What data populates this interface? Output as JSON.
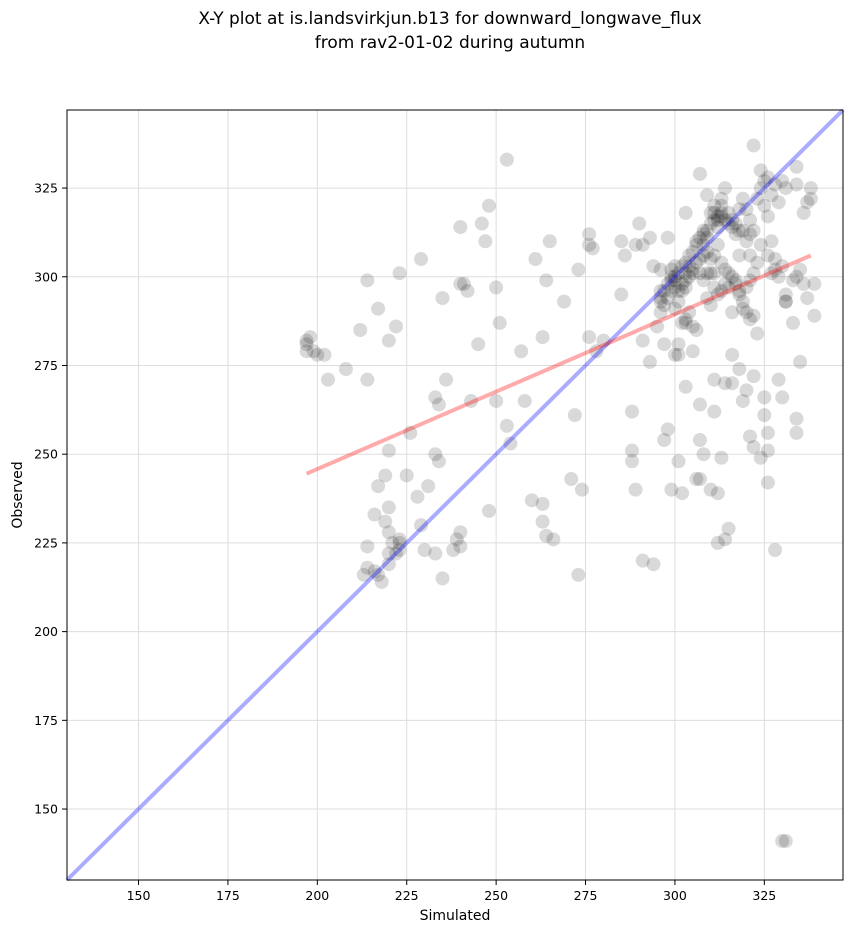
{
  "chart_data": {
    "type": "scatter",
    "title": [
      "X-Y plot at is.landsvirkjun.b13 for downward_longwave_flux",
      "from rav2-01-02 during autumn"
    ],
    "xlabel": "Simulated",
    "ylabel": "Observed",
    "xlim": [
      130,
      347
    ],
    "ylim": [
      130,
      347
    ],
    "xticks": [
      150,
      175,
      200,
      225,
      250,
      275,
      300,
      325
    ],
    "yticks": [
      150,
      175,
      200,
      225,
      250,
      275,
      300,
      325
    ],
    "grid": true,
    "colors": {
      "points": "#000000",
      "identity_line": "#0000ff",
      "regression_line": "#ff0000",
      "grid": "#dddddd"
    },
    "identity_line": {
      "from": [
        130,
        130
      ],
      "to": [
        347,
        347
      ]
    },
    "regression_line": {
      "from": [
        197,
        244.5
      ],
      "to": [
        338,
        306
      ]
    },
    "points": [
      [
        197,
        281
      ],
      [
        197,
        279
      ],
      [
        198,
        283
      ],
      [
        197,
        282
      ],
      [
        199,
        279
      ],
      [
        200,
        278
      ],
      [
        202,
        278
      ],
      [
        203,
        271
      ],
      [
        208,
        274
      ],
      [
        212,
        285
      ],
      [
        214,
        271
      ],
      [
        214,
        299
      ],
      [
        217,
        291
      ],
      [
        220,
        282
      ],
      [
        222,
        286
      ],
      [
        223,
        301
      ],
      [
        229,
        305
      ],
      [
        235,
        294
      ],
      [
        240,
        314
      ],
      [
        240,
        298
      ],
      [
        241,
        298
      ],
      [
        242,
        296
      ],
      [
        245,
        281
      ],
      [
        246,
        315
      ],
      [
        247,
        310
      ],
      [
        248,
        320
      ],
      [
        250,
        297
      ],
      [
        251,
        287
      ],
      [
        253,
        333
      ],
      [
        257,
        279
      ],
      [
        261,
        305
      ],
      [
        263,
        283
      ],
      [
        264,
        299
      ],
      [
        265,
        310
      ],
      [
        269,
        293
      ],
      [
        273,
        302
      ],
      [
        276,
        312
      ],
      [
        277,
        308
      ],
      [
        276,
        283
      ],
      [
        278,
        279
      ],
      [
        280,
        282
      ],
      [
        285,
        310
      ],
      [
        286,
        306
      ],
      [
        289,
        309
      ],
      [
        290,
        315
      ],
      [
        291,
        309
      ],
      [
        293,
        311
      ],
      [
        294,
        303
      ],
      [
        296,
        302
      ],
      [
        296,
        294
      ],
      [
        298,
        311
      ],
      [
        299,
        302
      ],
      [
        300,
        303
      ],
      [
        303,
        318
      ],
      [
        216,
        233
      ],
      [
        217,
        241
      ],
      [
        219,
        244
      ],
      [
        220,
        251
      ],
      [
        219,
        231
      ],
      [
        220,
        235
      ],
      [
        221,
        225
      ],
      [
        220,
        222
      ],
      [
        222,
        222
      ],
      [
        223,
        226
      ],
      [
        223,
        223
      ],
      [
        220,
        219
      ],
      [
        217,
        216
      ],
      [
        213,
        216
      ],
      [
        214,
        218
      ],
      [
        216,
        217
      ],
      [
        214,
        224
      ],
      [
        220,
        228
      ],
      [
        218,
        214
      ],
      [
        223,
        225
      ],
      [
        225,
        244
      ],
      [
        226,
        256
      ],
      [
        228,
        238
      ],
      [
        229,
        230
      ],
      [
        230,
        223
      ],
      [
        231,
        241
      ],
      [
        233,
        222
      ],
      [
        233,
        250
      ],
      [
        234,
        248
      ],
      [
        233,
        266
      ],
      [
        234,
        264
      ],
      [
        235,
        215
      ],
      [
        236,
        271
      ],
      [
        238,
        223
      ],
      [
        239,
        226
      ],
      [
        240,
        224
      ],
      [
        240,
        228
      ],
      [
        243,
        265
      ],
      [
        248,
        234
      ],
      [
        250,
        265
      ],
      [
        253,
        258
      ],
      [
        254,
        253
      ],
      [
        258,
        265
      ],
      [
        260,
        237
      ],
      [
        263,
        236
      ],
      [
        263,
        231
      ],
      [
        264,
        227
      ],
      [
        266,
        226
      ],
      [
        271,
        243
      ],
      [
        272,
        261
      ],
      [
        273,
        216
      ],
      [
        274,
        240
      ],
      [
        276,
        309
      ],
      [
        285,
        295
      ],
      [
        288,
        262
      ],
      [
        288,
        251
      ],
      [
        288,
        248
      ],
      [
        289,
        240
      ],
      [
        291,
        220
      ],
      [
        291,
        282
      ],
      [
        293,
        276
      ],
      [
        294,
        219
      ],
      [
        295,
        286
      ],
      [
        296,
        290
      ],
      [
        296,
        296
      ],
      [
        297,
        281
      ],
      [
        297,
        254
      ],
      [
        298,
        257
      ],
      [
        299,
        240
      ],
      [
        300,
        300
      ],
      [
        301,
        278
      ],
      [
        301,
        248
      ],
      [
        302,
        239
      ],
      [
        303,
        269
      ],
      [
        303,
        287
      ],
      [
        305,
        279
      ],
      [
        306,
        243
      ],
      [
        307,
        243
      ],
      [
        307,
        264
      ],
      [
        307,
        254
      ],
      [
        308,
        250
      ],
      [
        310,
        240
      ],
      [
        311,
        271
      ],
      [
        311,
        262
      ],
      [
        312,
        239
      ],
      [
        313,
        249
      ],
      [
        314,
        270
      ],
      [
        315,
        229
      ],
      [
        312,
        225
      ],
      [
        314,
        226
      ],
      [
        316,
        270
      ],
      [
        316,
        278
      ],
      [
        318,
        274
      ],
      [
        319,
        265
      ],
      [
        320,
        268
      ],
      [
        321,
        255
      ],
      [
        322,
        252
      ],
      [
        322,
        272
      ],
      [
        323,
        284
      ],
      [
        324,
        249
      ],
      [
        325,
        266
      ],
      [
        325,
        261
      ],
      [
        326,
        242
      ],
      [
        326,
        256
      ],
      [
        326,
        251
      ],
      [
        327,
        301
      ],
      [
        328,
        223
      ],
      [
        329,
        271
      ],
      [
        330,
        266
      ],
      [
        331,
        295
      ],
      [
        331,
        293
      ],
      [
        333,
        287
      ],
      [
        334,
        256
      ],
      [
        334,
        260
      ],
      [
        335,
        276
      ],
      [
        330,
        141
      ],
      [
        331,
        141
      ],
      [
        297,
        296
      ],
      [
        298,
        298
      ],
      [
        299,
        300
      ],
      [
        300,
        299
      ],
      [
        301,
        301
      ],
      [
        302,
        303
      ],
      [
        303,
        304
      ],
      [
        304,
        306
      ],
      [
        305,
        307
      ],
      [
        306,
        309
      ],
      [
        307,
        311
      ],
      [
        308,
        312
      ],
      [
        309,
        313
      ],
      [
        310,
        315
      ],
      [
        311,
        316
      ],
      [
        312,
        317
      ],
      [
        313,
        318
      ],
      [
        314,
        316
      ],
      [
        315,
        315
      ],
      [
        316,
        314
      ],
      [
        317,
        312
      ],
      [
        318,
        313
      ],
      [
        312,
        314
      ],
      [
        311,
        318
      ],
      [
        313,
        320
      ],
      [
        313,
        322
      ],
      [
        314,
        325
      ],
      [
        316,
        316
      ],
      [
        315,
        318
      ],
      [
        312,
        316
      ],
      [
        310,
        318
      ],
      [
        309,
        311
      ],
      [
        308,
        306
      ],
      [
        306,
        310
      ],
      [
        305,
        302
      ],
      [
        304,
        303
      ],
      [
        303,
        299
      ],
      [
        302,
        296
      ],
      [
        301,
        293
      ],
      [
        300,
        291
      ],
      [
        299,
        296
      ],
      [
        298,
        294
      ],
      [
        297,
        292
      ],
      [
        296,
        293
      ],
      [
        299,
        299
      ],
      [
        300,
        297
      ],
      [
        301,
        296
      ],
      [
        302,
        298
      ],
      [
        303,
        301
      ],
      [
        303,
        297
      ],
      [
        304,
        300
      ],
      [
        305,
        301
      ],
      [
        306,
        304
      ],
      [
        307,
        305
      ],
      [
        308,
        313
      ],
      [
        309,
        301
      ],
      [
        310,
        305
      ],
      [
        311,
        306
      ],
      [
        312,
        309
      ],
      [
        313,
        304
      ],
      [
        314,
        302
      ],
      [
        315,
        301
      ],
      [
        316,
        300
      ],
      [
        317,
        298
      ],
      [
        318,
        296
      ],
      [
        319,
        293
      ],
      [
        320,
        297
      ],
      [
        321,
        299
      ],
      [
        322,
        301
      ],
      [
        320,
        310
      ],
      [
        321,
        312
      ],
      [
        322,
        313
      ],
      [
        323,
        322
      ],
      [
        324,
        325
      ],
      [
        325,
        327
      ],
      [
        326,
        328
      ],
      [
        327,
        323
      ],
      [
        328,
        326
      ],
      [
        329,
        321
      ],
      [
        330,
        327
      ],
      [
        331,
        325
      ],
      [
        322,
        337
      ],
      [
        324,
        330
      ],
      [
        325,
        320
      ],
      [
        326,
        317
      ],
      [
        327,
        310
      ],
      [
        329,
        300
      ],
      [
        328,
        302
      ],
      [
        331,
        293
      ],
      [
        333,
        299
      ],
      [
        334,
        300
      ],
      [
        335,
        302
      ],
      [
        336,
        298
      ],
      [
        336,
        318
      ],
      [
        337,
        321
      ],
      [
        337,
        294
      ],
      [
        338,
        322
      ],
      [
        338,
        325
      ],
      [
        339,
        289
      ],
      [
        339,
        298
      ],
      [
        334,
        326
      ],
      [
        334,
        331
      ],
      [
        330,
        303
      ],
      [
        328,
        305
      ],
      [
        326,
        306
      ],
      [
        324,
        309
      ],
      [
        323,
        304
      ],
      [
        322,
        289
      ],
      [
        321,
        288
      ],
      [
        320,
        290
      ],
      [
        319,
        291
      ],
      [
        318,
        295
      ],
      [
        317,
        299
      ],
      [
        316,
        290
      ],
      [
        315,
        297
      ],
      [
        314,
        298
      ],
      [
        313,
        296
      ],
      [
        312,
        295
      ],
      [
        311,
        297
      ],
      [
        310,
        292
      ],
      [
        309,
        294
      ],
      [
        308,
        299
      ],
      [
        307,
        301
      ],
      [
        306,
        285
      ],
      [
        305,
        286
      ],
      [
        304,
        290
      ],
      [
        303,
        288
      ],
      [
        302,
        287
      ],
      [
        301,
        281
      ],
      [
        300,
        278
      ],
      [
        310,
        301
      ],
      [
        311,
        301
      ],
      [
        308,
        309
      ],
      [
        309,
        307
      ],
      [
        317,
        315
      ],
      [
        318,
        319
      ],
      [
        319,
        322
      ],
      [
        320,
        319
      ],
      [
        321,
        316
      ],
      [
        321,
        306
      ],
      [
        319,
        313
      ],
      [
        318,
        306
      ],
      [
        307,
        329
      ],
      [
        309,
        323
      ],
      [
        311,
        320
      ],
      [
        313,
        317
      ]
    ]
  }
}
